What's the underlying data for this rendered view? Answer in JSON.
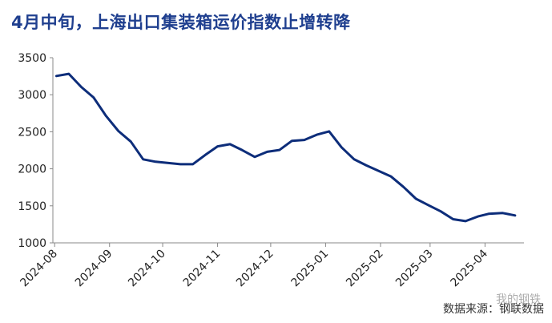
{
  "title": "4月中旬，上海出口集装箱运价指数止增转降",
  "source": "数据来源：钢联数据",
  "watermark": "我的钢铁",
  "colors": {
    "line": "#0d2d7a",
    "title": "#1f3f8f"
  },
  "chart_data": {
    "type": "line",
    "title": "4月中旬，上海出口集装箱运价指数止增转降",
    "xlabel": "",
    "ylabel": "",
    "ylim": [
      1000,
      3500
    ],
    "yticks": [
      1000,
      1500,
      2000,
      2500,
      3000,
      3500
    ],
    "xticks": [
      "2024-08",
      "2024-09",
      "2024-10",
      "2024-11",
      "2024-12",
      "2025-01",
      "2025-02",
      "2025-03",
      "2025-04"
    ],
    "grid": false,
    "legend": "none",
    "series": [
      {
        "name": "",
        "x": [
          "2024-08-02",
          "2024-08-09",
          "2024-08-16",
          "2024-08-23",
          "2024-08-30",
          "2024-09-06",
          "2024-09-13",
          "2024-09-20",
          "2024-09-27",
          "2024-10-11",
          "2024-10-18",
          "2024-10-25",
          "2024-11-01",
          "2024-11-08",
          "2024-11-15",
          "2024-11-22",
          "2024-11-29",
          "2024-12-06",
          "2024-12-13",
          "2024-12-20",
          "2024-12-27",
          "2025-01-03",
          "2025-01-10",
          "2025-01-17",
          "2025-01-24",
          "2025-02-07",
          "2025-02-14",
          "2025-02-21",
          "2025-02-28",
          "2025-03-07",
          "2025-03-14",
          "2025-03-21",
          "2025-03-28",
          "2025-04-03",
          "2025-04-11",
          "2025-04-18"
        ],
        "values": [
          3253,
          3283,
          3105,
          2963,
          2714,
          2510,
          2367,
          2128,
          2095,
          2062,
          2062,
          2186,
          2303,
          2332,
          2251,
          2160,
          2229,
          2254,
          2378,
          2390,
          2460,
          2505,
          2290,
          2130,
          2045,
          1895,
          1754,
          1595,
          1510,
          1425,
          1319,
          1293,
          1356,
          1392,
          1403,
          1370
        ]
      }
    ]
  }
}
